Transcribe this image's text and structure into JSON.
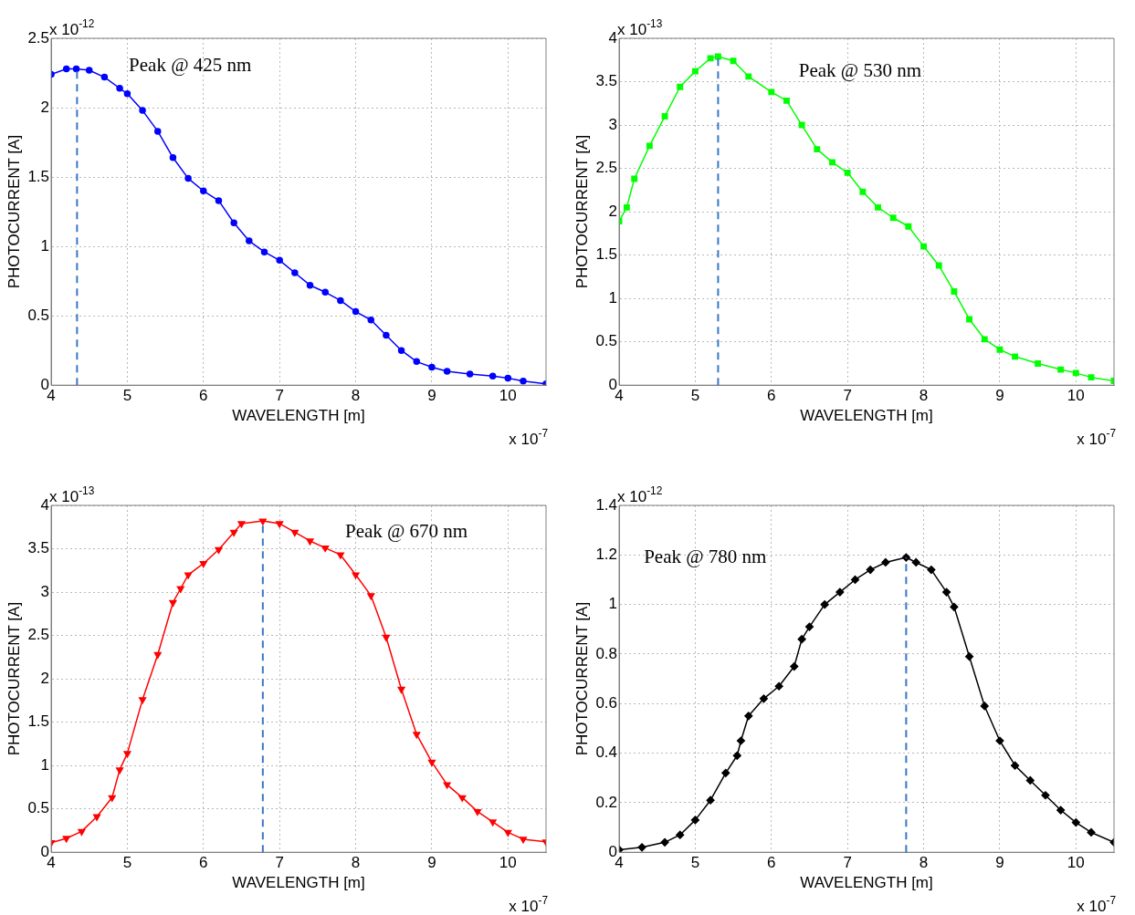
{
  "chart_data": [
    {
      "type": "line",
      "xlabel": "WAVELENGTH [m]",
      "ylabel": "PHOTOCURRENT [A]",
      "color": "#0000ff",
      "marker": "circle",
      "grid": true,
      "xlim": [
        4,
        10.5
      ],
      "xticks": [
        4,
        5,
        6,
        7,
        8,
        9,
        10
      ],
      "ylim": [
        0,
        2.5
      ],
      "yticks": [
        0,
        0.5,
        1,
        1.5,
        2,
        2.5
      ],
      "x": [
        4.0,
        4.2,
        4.33,
        4.5,
        4.7,
        4.9,
        5.0,
        5.2,
        5.4,
        5.6,
        5.8,
        6.0,
        6.2,
        6.4,
        6.6,
        6.8,
        7.0,
        7.2,
        7.4,
        7.6,
        7.8,
        8.0,
        8.2,
        8.4,
        8.6,
        8.8,
        9.0,
        9.2,
        9.5,
        9.8,
        10.0,
        10.2,
        10.5
      ],
      "values": [
        2.24,
        2.28,
        2.28,
        2.27,
        2.22,
        2.14,
        2.1,
        1.98,
        1.83,
        1.64,
        1.49,
        1.4,
        1.33,
        1.17,
        1.04,
        0.96,
        0.9,
        0.81,
        0.72,
        0.67,
        0.61,
        0.53,
        0.47,
        0.36,
        0.25,
        0.17,
        0.13,
        0.1,
        0.08,
        0.065,
        0.05,
        0.03,
        0.01
      ],
      "ref_lines": [
        {
          "axis": "x",
          "value": 4.34,
          "color": "#3a76c4",
          "line_style": "dashed"
        }
      ],
      "annotations": [
        "x 10$^{-12}$",
        "x 10$^{-7}$",
        "Peak @ 425 nm"
      ]
    },
    {
      "type": "line",
      "xlabel": "WAVELENGTH [m]",
      "ylabel": "PHOTOCURRENT [A]",
      "color": "#00ff00",
      "marker": "square",
      "grid": true,
      "xlim": [
        4,
        10.5
      ],
      "xticks": [
        4,
        5,
        6,
        7,
        8,
        9,
        10
      ],
      "ylim": [
        0,
        4
      ],
      "yticks": [
        0,
        0.5,
        1,
        1.5,
        2,
        2.5,
        3,
        3.5,
        4
      ],
      "x": [
        4.0,
        4.1,
        4.2,
        4.4,
        4.6,
        4.8,
        5.0,
        5.2,
        5.3,
        5.5,
        5.7,
        6.0,
        6.2,
        6.4,
        6.6,
        6.8,
        7.0,
        7.2,
        7.4,
        7.6,
        7.8,
        8.0,
        8.2,
        8.4,
        8.6,
        8.8,
        9.0,
        9.2,
        9.5,
        9.8,
        10.0,
        10.2,
        10.5
      ],
      "values": [
        1.89,
        2.05,
        2.38,
        2.76,
        3.1,
        3.44,
        3.62,
        3.77,
        3.79,
        3.74,
        3.56,
        3.38,
        3.28,
        3.0,
        2.72,
        2.57,
        2.45,
        2.23,
        2.05,
        1.93,
        1.83,
        1.6,
        1.38,
        1.08,
        0.76,
        0.53,
        0.41,
        0.33,
        0.25,
        0.18,
        0.14,
        0.09,
        0.05
      ],
      "ref_lines": [
        {
          "axis": "x",
          "value": 5.3,
          "color": "#3a76c4",
          "line_style": "dashed"
        }
      ],
      "annotations": [
        "x 10$^{-13}$",
        "x 10$^{-7}$",
        "Peak @ 530 nm"
      ]
    },
    {
      "type": "line",
      "xlabel": "WAVELENGTH [m]",
      "ylabel": "PHOTOCURRENT [A]",
      "color": "#ff0000",
      "marker": "triangle",
      "grid": true,
      "xlim": [
        4,
        10.5
      ],
      "xticks": [
        4,
        5,
        6,
        7,
        8,
        9,
        10
      ],
      "ylim": [
        0,
        4
      ],
      "yticks": [
        0,
        0.5,
        1,
        1.5,
        2,
        2.5,
        3,
        3.5,
        4
      ],
      "x": [
        4.0,
        4.2,
        4.4,
        4.6,
        4.8,
        4.9,
        5.0,
        5.2,
        5.4,
        5.6,
        5.7,
        5.8,
        6.0,
        6.2,
        6.4,
        6.5,
        6.78,
        7.0,
        7.2,
        7.4,
        7.6,
        7.8,
        8.0,
        8.2,
        8.4,
        8.6,
        8.8,
        9.0,
        9.2,
        9.4,
        9.6,
        9.8,
        10.0,
        10.2,
        10.5
      ],
      "values": [
        0.11,
        0.16,
        0.24,
        0.41,
        0.63,
        0.95,
        1.14,
        1.76,
        2.28,
        2.88,
        3.04,
        3.2,
        3.33,
        3.49,
        3.69,
        3.79,
        3.82,
        3.79,
        3.69,
        3.59,
        3.51,
        3.43,
        3.2,
        2.96,
        2.48,
        1.88,
        1.36,
        1.04,
        0.78,
        0.63,
        0.47,
        0.35,
        0.23,
        0.15,
        0.12
      ],
      "ref_lines": [
        {
          "axis": "x",
          "value": 6.78,
          "color": "#3a76c4",
          "line_style": "dashed"
        }
      ],
      "annotations": [
        "x 10$^{-13}$",
        "x 10$^{-7}$",
        "Peak @ 670 nm"
      ]
    },
    {
      "type": "line",
      "xlabel": "WAVELENGTH [m]",
      "ylabel": "PHOTOCURRENT [A]",
      "color": "#000000",
      "marker": "diamond",
      "grid": true,
      "xlim": [
        4,
        10.5
      ],
      "xticks": [
        4,
        5,
        6,
        7,
        8,
        9,
        10
      ],
      "ylim": [
        0,
        1.4
      ],
      "yticks": [
        0,
        0.2,
        0.4,
        0.6,
        0.8,
        1,
        1.2,
        1.4
      ],
      "x": [
        4.0,
        4.3,
        4.6,
        4.8,
        5.0,
        5.2,
        5.4,
        5.55,
        5.6,
        5.7,
        5.9,
        6.1,
        6.3,
        6.4,
        6.5,
        6.7,
        6.9,
        7.1,
        7.3,
        7.5,
        7.77,
        7.9,
        8.1,
        8.3,
        8.4,
        8.6,
        8.8,
        9.0,
        9.2,
        9.4,
        9.6,
        9.8,
        10.0,
        10.2,
        10.5
      ],
      "values": [
        0.01,
        0.02,
        0.04,
        0.07,
        0.13,
        0.21,
        0.32,
        0.39,
        0.45,
        0.55,
        0.62,
        0.67,
        0.75,
        0.86,
        0.91,
        1.0,
        1.05,
        1.1,
        1.14,
        1.17,
        1.19,
        1.17,
        1.14,
        1.05,
        0.99,
        0.79,
        0.59,
        0.45,
        0.35,
        0.29,
        0.23,
        0.17,
        0.12,
        0.08,
        0.04
      ],
      "ref_lines": [
        {
          "axis": "x",
          "value": 7.77,
          "color": "#3a76c4",
          "line_style": "dashed"
        }
      ],
      "annotations": [
        "x 10$^{-12}$",
        "x 10$^{-7}$",
        "Peak @ 780 nm"
      ]
    }
  ]
}
